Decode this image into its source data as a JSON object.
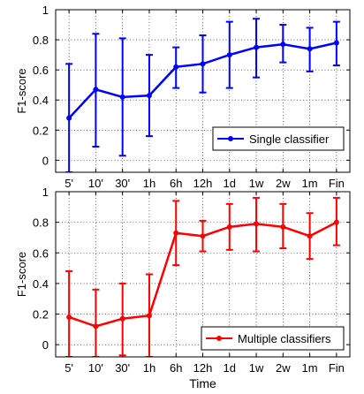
{
  "chart_data": [
    {
      "type": "line",
      "title": "",
      "xlabel": "",
      "ylabel": "F1-score",
      "categories": [
        "5'",
        "10'",
        "30'",
        "1h",
        "6h",
        "12h",
        "1d",
        "1w",
        "2w",
        "1m",
        "Fin"
      ],
      "ylim": [
        -0.08,
        1
      ],
      "yticks": [
        0,
        0.2,
        0.4,
        0.6,
        0.8,
        1
      ],
      "grid": true,
      "legend_position": "lower-right",
      "color": "#0000ff",
      "series": [
        {
          "name": "Single classifier",
          "values": [
            0.28,
            0.47,
            0.42,
            0.43,
            0.62,
            0.64,
            0.7,
            0.75,
            0.77,
            0.74,
            0.78
          ],
          "err_low": [
            -0.08,
            0.09,
            0.03,
            0.16,
            0.48,
            0.45,
            0.48,
            0.55,
            0.65,
            0.59,
            0.63
          ],
          "err_high": [
            0.64,
            0.84,
            0.81,
            0.7,
            0.75,
            0.83,
            0.92,
            0.94,
            0.9,
            0.88,
            0.92
          ]
        }
      ]
    },
    {
      "type": "line",
      "title": "",
      "xlabel": "Time",
      "ylabel": "F1-score",
      "categories": [
        "5'",
        "10'",
        "30'",
        "1h",
        "6h",
        "12h",
        "1d",
        "1w",
        "2w",
        "1m",
        "Fin"
      ],
      "ylim": [
        -0.08,
        1
      ],
      "yticks": [
        0,
        0.2,
        0.4,
        0.6,
        0.8,
        1
      ],
      "grid": true,
      "legend_position": "lower-right",
      "color": "#ff0000",
      "series": [
        {
          "name": "Multiple classifiers",
          "values": [
            0.18,
            0.12,
            0.17,
            0.19,
            0.73,
            0.71,
            0.77,
            0.79,
            0.77,
            0.71,
            0.8
          ],
          "err_low": [
            -0.08,
            -0.08,
            -0.07,
            -0.08,
            0.52,
            0.61,
            0.62,
            0.61,
            0.63,
            0.56,
            0.65
          ],
          "err_high": [
            0.48,
            0.36,
            0.4,
            0.46,
            0.94,
            0.81,
            0.92,
            0.96,
            0.92,
            0.86,
            0.96
          ]
        }
      ]
    }
  ]
}
